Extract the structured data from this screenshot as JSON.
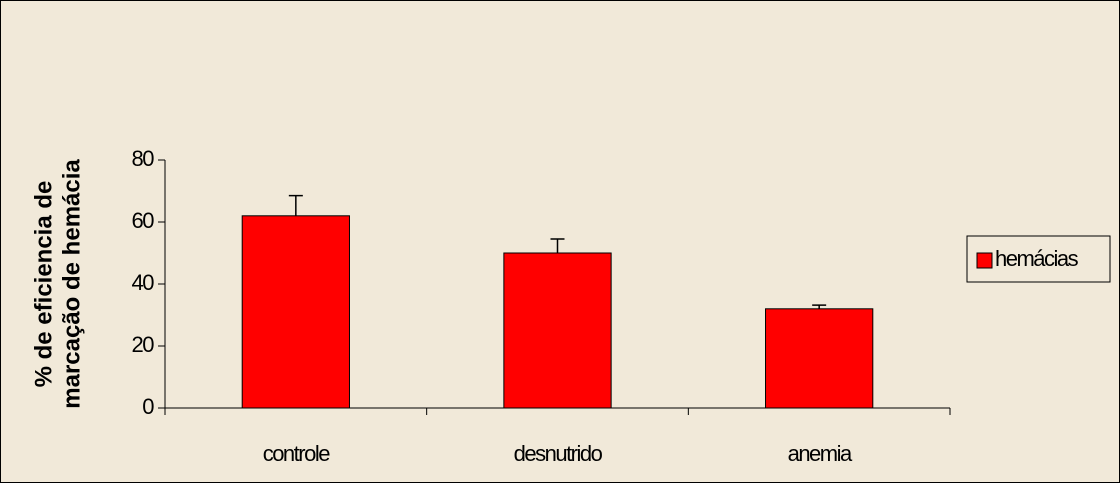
{
  "chart_data": {
    "type": "bar",
    "ylabel": [
      "% de eficiencia de",
      "marcação de hemácia"
    ],
    "categories": [
      "controle",
      "desnutrido",
      "anemia"
    ],
    "series": [
      {
        "name": "hemácias",
        "color": "#ff0000",
        "values": [
          62,
          50,
          32
        ],
        "errors": [
          6.5,
          4.5,
          1.2
        ]
      }
    ],
    "ylim": [
      0,
      80
    ],
    "yticks": [
      0,
      20,
      40,
      60,
      80
    ],
    "legend": "right"
  }
}
